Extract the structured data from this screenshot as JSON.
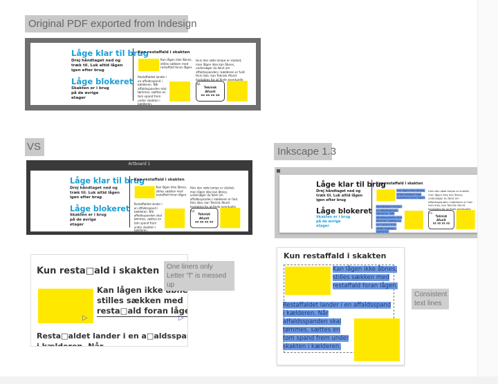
{
  "labels": {
    "original": "Original PDF exported from Indesign",
    "vs": "VS",
    "inkscape": "Inkscape 1.3",
    "artboard": "Artboard 1"
  },
  "doc": {
    "heading1": "Låge klar til brug",
    "sub1": "Drej håndtaget ned og træk til. Luk altid lågen igen efter brug",
    "heading2": "Låge blokeret",
    "sub2": "Skakten er i brug på de øvrige etager",
    "col_title": "Kun restaffald i skakten",
    "text1": "Kan lågen ikke åbnes, stilles sækken med restaffald foran lågen.",
    "text2": "Restaffaldet lander i en affaldsspand i kælderen. Når affaldsspanden skal tømmes, sættes en tom spand frem under skakten i kælderen.",
    "text3": "Hvis den røde lampe er slukket, men lågen ikke kan åbnes, undersøger du først om affaldsspanden i kælderen er fuld. Hvis ikke, kan Teknisk Afunit kontaktes for at finde eventuelle fejl.",
    "box_line1": "Teknisk",
    "box_line2": "Afunit",
    "box_line3": "xx xx xx xx"
  },
  "zoom_broken": {
    "title": "Kun resta□ald i skakten",
    "line1": "Kan lågen ikke åbnes,",
    "line2": "stilles sækken med",
    "line3": "resta□ald foran lågen.",
    "line4": "Resta□aldet lander i en a□aldsspand",
    "line5": "i kælderen. Når"
  },
  "note_broken": [
    "One liners only",
    "Letter \"f\" is messed up"
  ],
  "zoom_ok": {
    "title": "Kun restaffald i skakten",
    "lines1": [
      "Kan lågen ikke åbnes,",
      "stilles sækken med",
      "restaffald foran lågen."
    ],
    "lines2": [
      "Restaffaldet lander i en affaldsspand",
      "i kælderen. Når",
      "affaldsspanden skal",
      "tømmes, sættes en",
      "tom spand frem under",
      "skakten i kælderen."
    ]
  },
  "note_ok": [
    "Consistent",
    "text lines"
  ],
  "colors": {
    "heading_blue": "#1a9fd8",
    "yellow": "#ffe800",
    "highlight": "#6f98e0"
  }
}
